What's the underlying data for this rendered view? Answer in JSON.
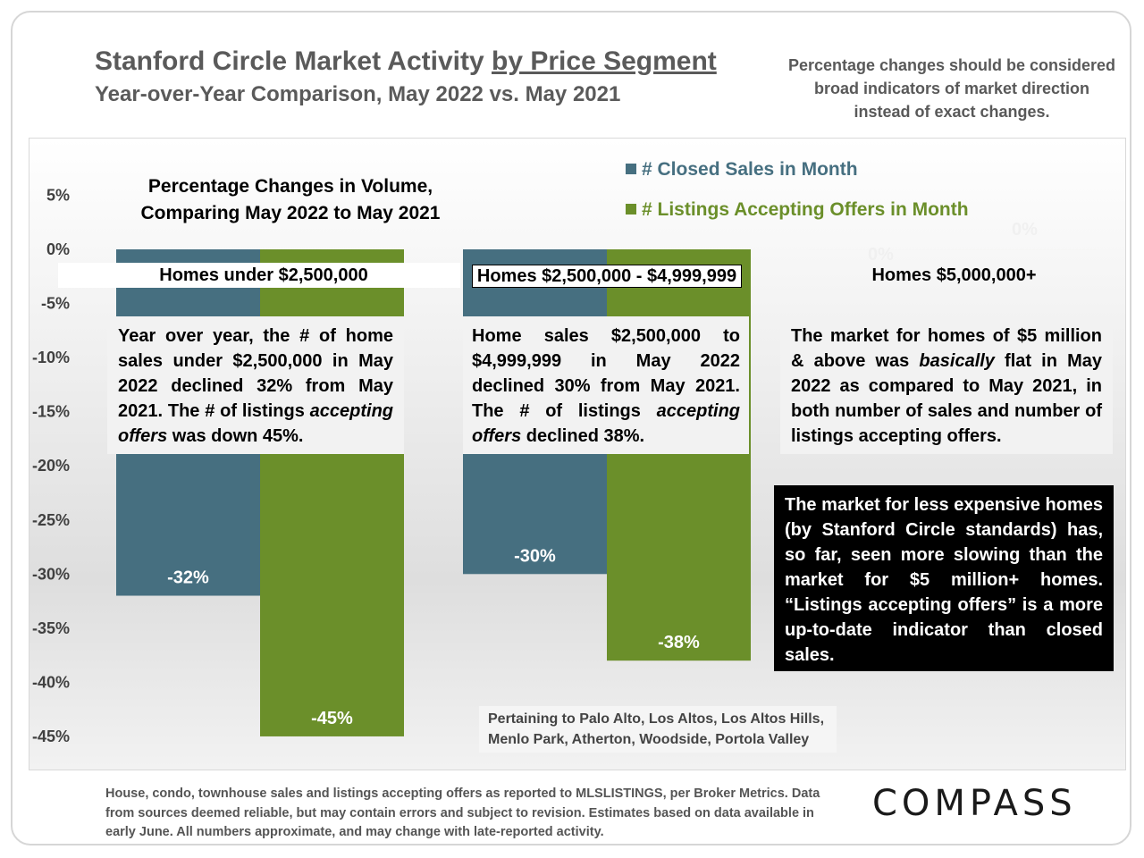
{
  "header": {
    "title_main": "Stanford Circle Market Activity ",
    "title_underlined": "by Price Segment",
    "subtitle": "Year-over-Year Comparison, May 2022 vs. May 2021",
    "note": "Percentage changes should be considered broad indicators of market direction instead of exact changes."
  },
  "chart_data": {
    "type": "bar",
    "title": "Percentage Changes in Volume, Comparing May 2022 to May 2021",
    "categories": [
      "Homes under $2,500,000",
      "Homes $2,500,000 - $4,999,999",
      "Homes $5,000,000+"
    ],
    "series": [
      {
        "name": "# Closed Sales in Month",
        "values": [
          -32,
          -30,
          0
        ],
        "labels": [
          "-32%",
          "-30%",
          "0%"
        ]
      },
      {
        "name": "# Listings Accepting Offers in Month",
        "values": [
          -45,
          -38,
          0
        ],
        "labels": [
          "-45%",
          "-38%",
          "0%"
        ]
      }
    ],
    "ylim": [
      -45,
      5
    ],
    "yticks": [
      5,
      0,
      -5,
      -10,
      -15,
      -20,
      -25,
      -30,
      -35,
      -40,
      -45
    ],
    "ytick_labels": [
      "5%",
      "0%",
      "-5%",
      "-10%",
      "-15%",
      "-20%",
      "-25%",
      "-30%",
      "-35%",
      "-40%",
      "-45%"
    ],
    "grid": false,
    "legend_position": "top-right"
  },
  "chart_text": {
    "title_line1": "Percentage Changes in Volume,",
    "title_line2": "Comparing May 2022 to May 2021"
  },
  "colors": {
    "closed_sales": "#466f80",
    "listings_offers": "#6b8f2a"
  },
  "annotations": {
    "under_2_5m": [
      "Year over year, the # of home sales under $2,500,000 in May 2022 declined 32% from May 2021. The # of listings ",
      "accepting offers",
      " was down 45%."
    ],
    "mid_range": [
      "Home sales $2,500,000 to $4,999,999 in May 2022 declined 30% from May 2021. The # of listings ",
      "accepting offers",
      " declined 38%."
    ],
    "over_5m": [
      "The market for homes of $5 million & above was ",
      "basically",
      " flat in May 2022 as compared to May 2021, in both number of sales and number of listings accepting offers."
    ],
    "callout": "The market for less expensive homes (by Stanford Circle standards) has, so far, seen more slowing than the market for $5 million+ homes. “Listings accepting offers” is a more up-to-date indicator than closed sales.",
    "pertaining": "Pertaining to Palo Alto, Los Altos, Los Altos Hills, Menlo Park, Atherton, Woodside, Portola Valley"
  },
  "footer": {
    "text": "House, condo, townhouse sales and listings accepting offers as reported to MLSLISTINGS, per Broker Metrics. Data from sources deemed reliable, but may contain errors and subject to revision. Estimates based on data available in early June. All numbers approximate, and may change with late-reported activity.",
    "logo": "COMPASS"
  }
}
